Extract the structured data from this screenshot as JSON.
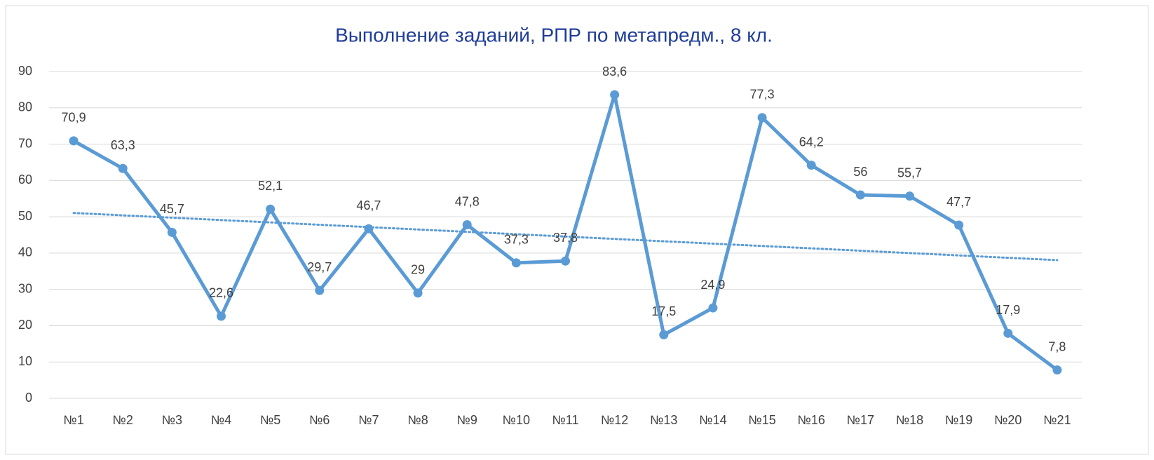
{
  "chart_data": {
    "type": "line",
    "title": "Выполнение заданий, РПР по метапредм., 8 кл.",
    "categories": [
      "№1",
      "№2",
      "№3",
      "№4",
      "№5",
      "№6",
      "№7",
      "№8",
      "№9",
      "№10",
      "№11",
      "№12",
      "№13",
      "№14",
      "№15",
      "№16",
      "№17",
      "№18",
      "№19",
      "№20",
      "№21"
    ],
    "series": [
      {
        "name": "Выполнение",
        "color": "#5b9bd5",
        "values": [
          70.9,
          63.3,
          45.7,
          22.6,
          52.1,
          29.7,
          46.7,
          29,
          47.8,
          37.3,
          37.8,
          83.6,
          17.5,
          24.9,
          77.3,
          64.2,
          56,
          55.7,
          47.7,
          17.9,
          7.8
        ],
        "value_labels": [
          "70,9",
          "63,3",
          "45,7",
          "22,6",
          "52,1",
          "29,7",
          "46,7",
          "29",
          "47,8",
          "37,3",
          "37,8",
          "83,6",
          "17,5",
          "24,9",
          "77,3",
          "64,2",
          "56",
          "55,7",
          "47,7",
          "17,9",
          "7,8"
        ]
      }
    ],
    "trendline": "linear",
    "ylim": [
      0,
      90
    ],
    "yticks": [
      0,
      10,
      20,
      30,
      40,
      50,
      60,
      70,
      80,
      90
    ],
    "grid": true
  }
}
